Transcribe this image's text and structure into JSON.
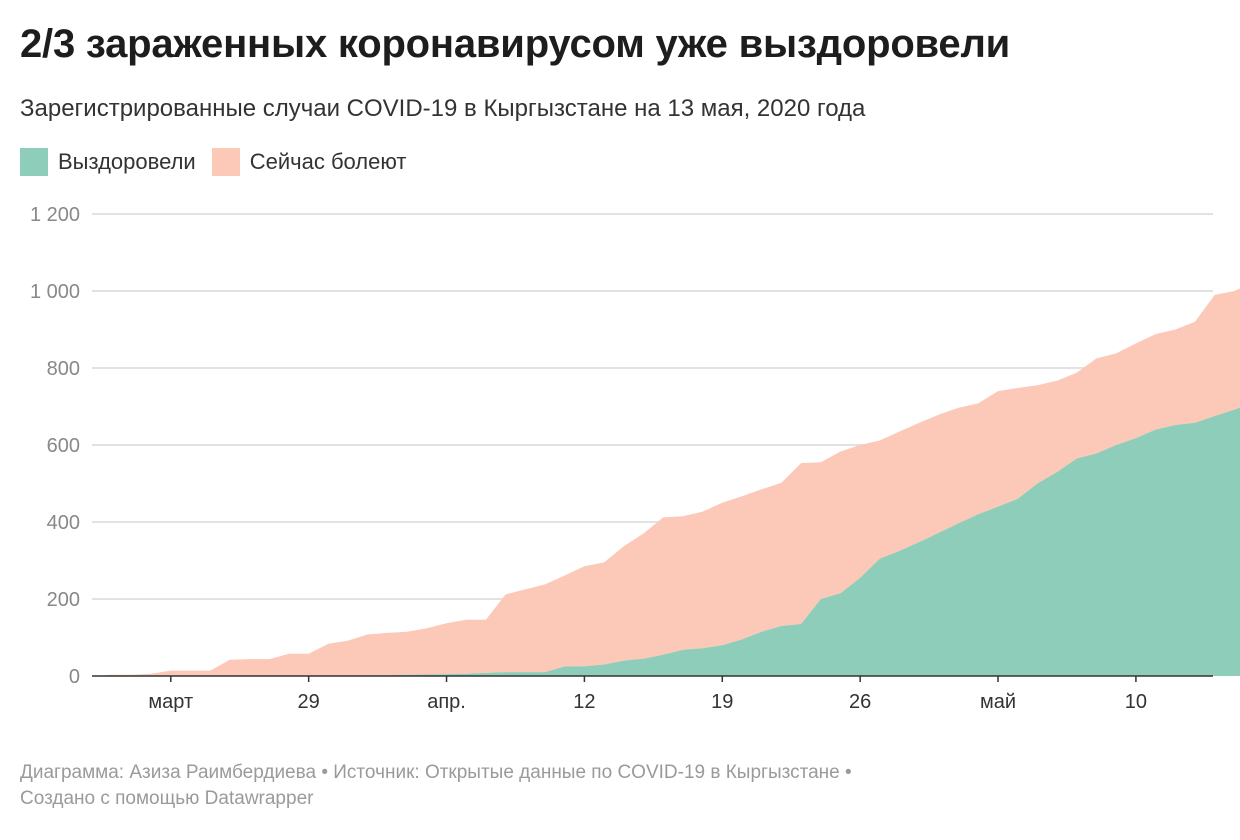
{
  "title": "2/3 зараженных коронавирусом уже выздоровели",
  "subtitle": "Зарегистрированные случаи COVID-19 в Кыргызстане на 13 мая, 2020 года",
  "legend": [
    {
      "label": "Выздоровели",
      "color": "#8ecdb9"
    },
    {
      "label": "Сейчас болеют",
      "color": "#fcc8b8"
    }
  ],
  "footer": {
    "line1": "Диаграмма: Азиза Раимбердиева • Источник: Открытые данные по COVID-19 в Кыргызстане •",
    "line2": "Создано с помощью Datawrapper"
  },
  "chart_data": {
    "type": "area",
    "stacked": true,
    "x_start": "2020-03-18",
    "x_end": "2020-05-13",
    "x_tick_labels": [
      {
        "date": "2020-03-22",
        "label": "март"
      },
      {
        "date": "2020-03-29",
        "label": "29"
      },
      {
        "date": "2020-04-05",
        "label": "апр."
      },
      {
        "date": "2020-04-12",
        "label": "12"
      },
      {
        "date": "2020-04-19",
        "label": "19"
      },
      {
        "date": "2020-04-26",
        "label": "26"
      },
      {
        "date": "2020-05-03",
        "label": "май"
      },
      {
        "date": "2020-05-10",
        "label": "10"
      }
    ],
    "y_ticks": [
      {
        "value": 0,
        "label": "0"
      },
      {
        "value": 200,
        "label": "200"
      },
      {
        "value": 400,
        "label": "400"
      },
      {
        "value": 600,
        "label": "600"
      },
      {
        "value": 800,
        "label": "800"
      },
      {
        "value": 1000,
        "label": "1 000"
      },
      {
        "value": 1200,
        "label": "1 200"
      }
    ],
    "ylim": [
      0,
      1200
    ],
    "grid": true,
    "legend_position": "top-left",
    "series": [
      {
        "name": "Выздоровели",
        "color": "#8ecdb9",
        "values": [
          0,
          0,
          0,
          0,
          0,
          0,
          0,
          0,
          0,
          0,
          0,
          0,
          0,
          0,
          1,
          2,
          3,
          4,
          5,
          6,
          8,
          10,
          10,
          10,
          25,
          25,
          30,
          40,
          45,
          55,
          68,
          72,
          80,
          95,
          115,
          130,
          135,
          200,
          215,
          255,
          305,
          325,
          348,
          372,
          397,
          420,
          440,
          460,
          500,
          530,
          565,
          578,
          600,
          618,
          640,
          652,
          658,
          675,
          692,
          710,
          728
        ]
      },
      {
        "name": "Сейчас болеют",
        "color": "#fcc8b8",
        "values": [
          0,
          3,
          3,
          6,
          14,
          14,
          14,
          42,
          44,
          44,
          58,
          58,
          84,
          92,
          107,
          110,
          112,
          120,
          132,
          140,
          138,
          202,
          215,
          228,
          236,
          260,
          265,
          297,
          325,
          357,
          347,
          355,
          370,
          372,
          370,
          372,
          418,
          355,
          368,
          345,
          307,
          310,
          310,
          307,
          300,
          288,
          300,
          288,
          255,
          237,
          223,
          247,
          238,
          246,
          248,
          248,
          262,
          315,
          308,
          313,
          307
        ]
      }
    ]
  }
}
